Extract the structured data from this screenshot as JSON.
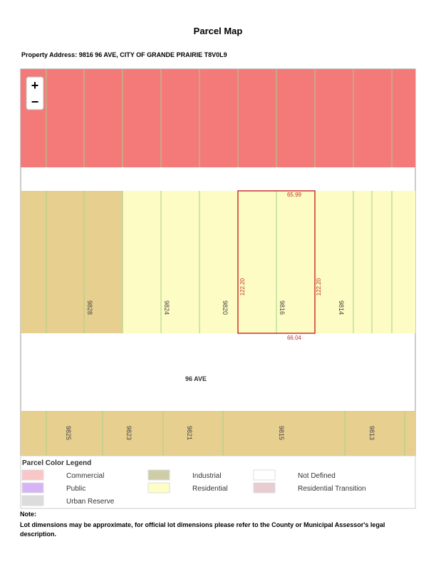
{
  "header": {
    "title": "Parcel Map",
    "address": "Property Address: 9816 96 AVE, CITY OF GRANDE PRAIRIE T8V0L9"
  },
  "map": {
    "zoom": {
      "in": "+",
      "out": "−"
    },
    "street": "96 AVE",
    "north_lots": [
      "9828",
      "9824",
      "9820",
      "9816",
      "9814"
    ],
    "south_lots": [
      "9825",
      "9823",
      "9821",
      "9815",
      "9813"
    ],
    "subject": {
      "top": "65.99",
      "bottom": "66.04",
      "left": "122.20",
      "right": "122.20"
    }
  },
  "legend": {
    "title": "Parcel Color Legend",
    "items": [
      {
        "label": "Commercial",
        "color": "#f8c7c7"
      },
      {
        "label": "Industrial",
        "color": "#cfcca8"
      },
      {
        "label": "Not Defined",
        "color": "#ffffff"
      },
      {
        "label": "Public",
        "color": "#d6b4f5"
      },
      {
        "label": "Residential",
        "color": "#fdfdc8"
      },
      {
        "label": "Residential Transition",
        "color": "#e8ccd0"
      },
      {
        "label": "Urban Reserve",
        "color": "#dcdcdc"
      }
    ]
  },
  "note": {
    "heading": "Note:",
    "text": "Lot dimensions may be approximate, for official lot dimensions please refer to the County or Municipal Assessor's legal description."
  }
}
